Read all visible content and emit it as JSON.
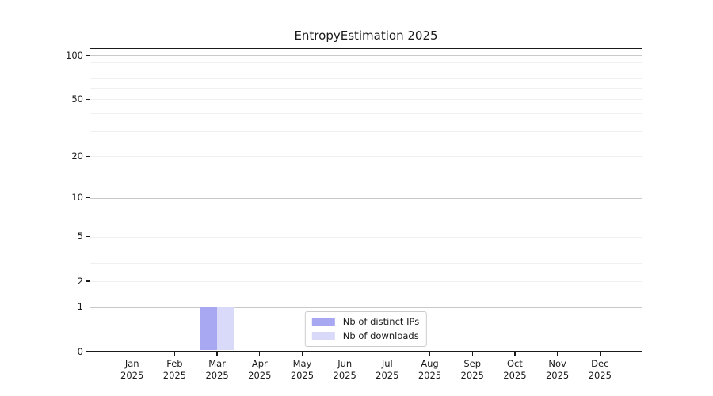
{
  "chart_data": {
    "type": "bar",
    "title": "EntropyEstimation 2025",
    "x_months": [
      "Jan",
      "Feb",
      "Mar",
      "Apr",
      "May",
      "Jun",
      "Jul",
      "Aug",
      "Sep",
      "Oct",
      "Nov",
      "Dec"
    ],
    "x_year": "2025",
    "series": [
      {
        "name": "Nb of distinct IPs",
        "color": "#a8a8f2",
        "values": [
          0,
          0,
          1,
          0,
          0,
          0,
          0,
          0,
          0,
          0,
          0,
          0
        ]
      },
      {
        "name": "Nb of downloads",
        "color": "#d9d9f9",
        "values": [
          0,
          0,
          1,
          0,
          0,
          0,
          0,
          0,
          0,
          0,
          0,
          0
        ]
      }
    ],
    "yscale": "log1p",
    "ylim": [
      0,
      112
    ],
    "y_tick_values": [
      0,
      1,
      2,
      5,
      10,
      20,
      50,
      100
    ],
    "y_tick_labels": [
      "0",
      "1",
      "2",
      "5",
      "10",
      "20",
      "50",
      "100"
    ],
    "y_major_gridlines": [
      1,
      10,
      100
    ],
    "y_minor_gridlines": [
      2,
      3,
      4,
      5,
      6,
      7,
      8,
      9,
      20,
      30,
      40,
      50,
      60,
      70,
      80,
      90
    ],
    "grid": "horizontal",
    "legend": {
      "position": "lower center",
      "entries": [
        "Nb of distinct IPs",
        "Nb of downloads"
      ]
    }
  },
  "colors": {
    "background": "#ffffff",
    "spine": "#1a1a1a",
    "text": "#1a1a1a",
    "major_grid": "#c9c9c9",
    "minor_grid": "#f0f0f0",
    "legend_border": "#cccccc",
    "legend_bg": "#ffffff"
  }
}
